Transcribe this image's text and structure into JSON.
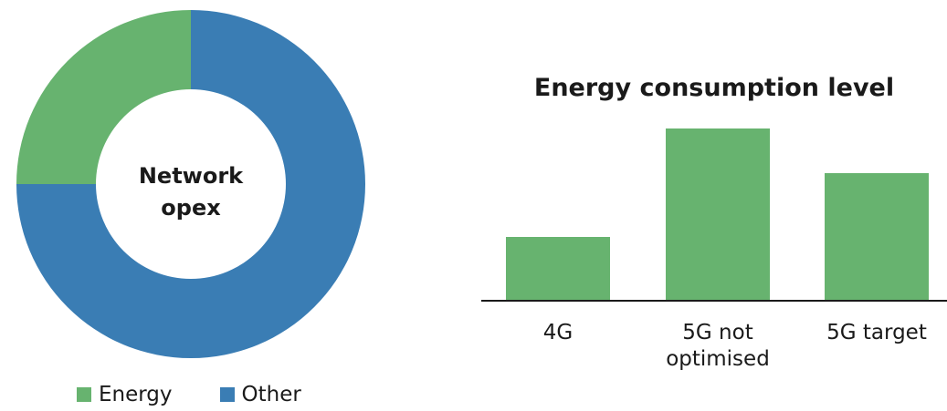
{
  "chart_data": [
    {
      "type": "pie",
      "variant": "donut",
      "center_label": [
        "Network",
        "opex"
      ],
      "categories": [
        "Energy",
        "Other"
      ],
      "values": [
        25,
        75
      ],
      "colors": [
        "#67b36f",
        "#3a7db4"
      ],
      "legend": {
        "placement": "bottom-left",
        "entries": [
          "Energy",
          "Other"
        ]
      }
    },
    {
      "type": "bar",
      "title": "Energy consumption level",
      "categories": [
        [
          "4G"
        ],
        [
          "5G not",
          "optimised"
        ],
        [
          "5G target"
        ]
      ],
      "values": [
        1.0,
        2.7,
        2.0
      ],
      "ylim": [
        0,
        3
      ],
      "bar_color": "#67b36f",
      "axis_color": "#1a1a1a",
      "grid": false
    }
  ]
}
